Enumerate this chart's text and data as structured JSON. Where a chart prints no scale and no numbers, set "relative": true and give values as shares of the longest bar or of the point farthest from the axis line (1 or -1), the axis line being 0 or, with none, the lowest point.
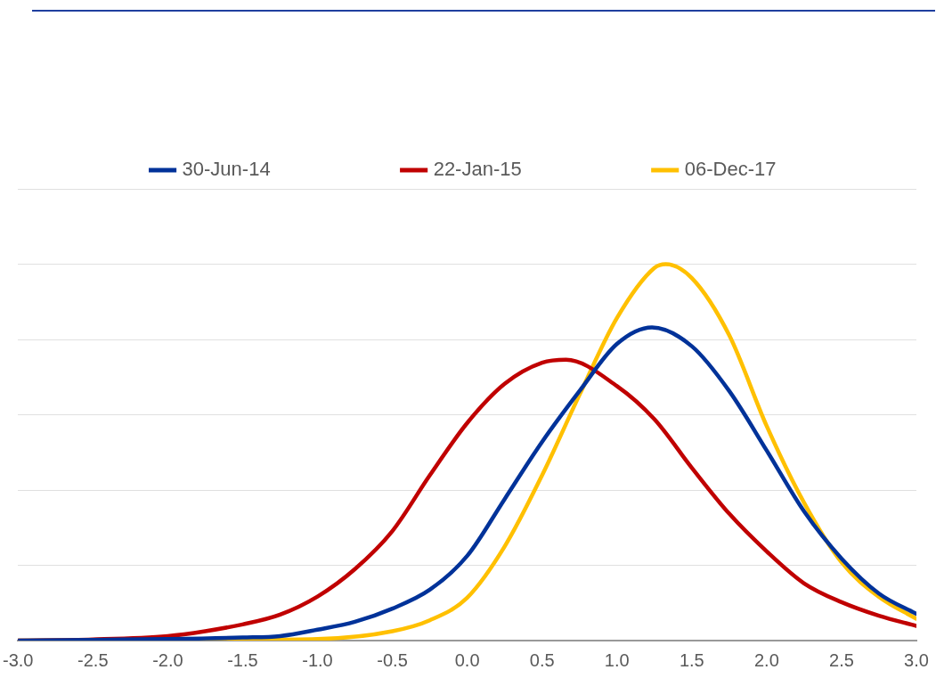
{
  "chart_data": {
    "type": "line",
    "relative": true,
    "legend": "top",
    "grid": "y",
    "marker": "none",
    "line_style": "solid",
    "xlim": [
      -3,
      3
    ],
    "xticks": [
      {
        "value": -3,
        "label": "-3.0"
      },
      {
        "value": -2.5,
        "label": "-2.5"
      },
      {
        "value": -2,
        "label": "-2.0"
      },
      {
        "value": -1.5,
        "label": "-1.5"
      },
      {
        "value": -1,
        "label": "-1.0"
      },
      {
        "value": -0.5,
        "label": "-0.5"
      },
      {
        "value": 0,
        "label": "0.0"
      },
      {
        "value": 0.5,
        "label": "0.5"
      },
      {
        "value": 1,
        "label": "1.0"
      },
      {
        "value": 1.5,
        "label": "1.5"
      },
      {
        "value": 2,
        "label": "2.0"
      },
      {
        "value": 2.5,
        "label": "2.5"
      },
      {
        "value": 3,
        "label": "3.0"
      }
    ],
    "series": [
      {
        "name": "30-Jun-14",
        "color": "#003299",
        "x": [
          -3,
          -2.5,
          -2,
          -1.5,
          -1.25,
          -1,
          -0.75,
          -0.5,
          -0.25,
          0,
          0.25,
          0.5,
          0.75,
          1,
          1.234,
          1.5,
          1.75,
          2,
          2.25,
          2.5,
          2.75,
          3
        ],
        "values": [
          0,
          0.002,
          0.004,
          0.008,
          0.012,
          0.029,
          0.05,
          0.085,
          0.135,
          0.225,
          0.376,
          0.528,
          0.663,
          0.788,
          0.832,
          0.782,
          0.663,
          0.505,
          0.343,
          0.218,
          0.125,
          0.071
        ]
      },
      {
        "name": "22-Jan-15",
        "color": "#c00000",
        "x": [
          -3,
          -2.5,
          -2,
          -1.75,
          -1.5,
          -1.25,
          -1,
          -0.75,
          -0.5,
          -0.25,
          0,
          0.25,
          0.5,
          0.66,
          1,
          1.25,
          1.5,
          1.75,
          2,
          2.25,
          2.5,
          2.75,
          3
        ],
        "values": [
          0,
          0.003,
          0.012,
          0.025,
          0.043,
          0.069,
          0.117,
          0.19,
          0.291,
          0.439,
          0.578,
          0.682,
          0.738,
          0.746,
          0.676,
          0.588,
          0.459,
          0.337,
          0.237,
          0.152,
          0.102,
          0.066,
          0.039
        ]
      },
      {
        "name": "06-Dec-17",
        "color": "#ffc000",
        "x": [
          -3,
          -2,
          -1.5,
          -1,
          -0.5,
          -0.25,
          0,
          0.25,
          0.5,
          0.75,
          1,
          1.25,
          1.326,
          1.5,
          1.75,
          2,
          2.25,
          2.5,
          2.75,
          3
        ],
        "values": [
          0,
          0.001,
          0.002,
          0.004,
          0.025,
          0.054,
          0.114,
          0.25,
          0.439,
          0.653,
          0.857,
          0.99,
          1,
          0.963,
          0.811,
          0.57,
          0.366,
          0.208,
          0.116,
          0.058
        ]
      }
    ]
  }
}
